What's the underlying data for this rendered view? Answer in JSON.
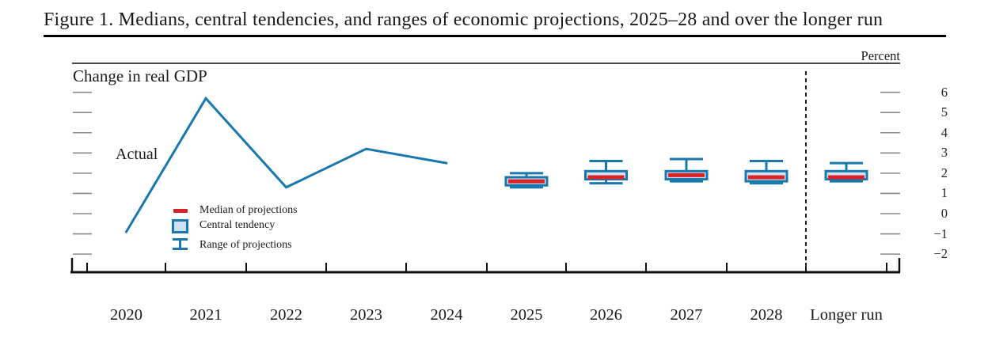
{
  "figure": {
    "title": "Figure 1. Medians, central tendencies, and ranges of economic projections, 2025–28 and over the longer run"
  },
  "chart": {
    "panel_title": "Change in real GDP",
    "unit_label": "Percent",
    "actual_label": "Actual",
    "legend": [
      {
        "marker": "median-dash-icon",
        "label": "Median of projections"
      },
      {
        "marker": "central-tendency-box-icon",
        "label": "Central tendency"
      },
      {
        "marker": "range-whisker-icon",
        "label": "Range of projections"
      }
    ]
  },
  "chart_data": {
    "type": "line+box-whisker",
    "title": "Change in real GDP",
    "unit_label": "Percent",
    "ylim": [
      -2.5,
      6.5
    ],
    "y_ticks": [
      "6",
      "5",
      "4",
      "3",
      "2",
      "1",
      "0",
      "−1",
      "−2"
    ],
    "y_tick_values": [
      6,
      5,
      4,
      3,
      2,
      1,
      0,
      -1,
      -2
    ],
    "x_categories": [
      "2020",
      "2021",
      "2022",
      "2023",
      "2024",
      "2025",
      "2026",
      "2027",
      "2028",
      "Longer run"
    ],
    "actual": {
      "label": "Actual",
      "years": [
        "2020",
        "2021",
        "2022",
        "2023",
        "2024"
      ],
      "values": [
        -0.9,
        5.7,
        1.3,
        3.2,
        2.5
      ]
    },
    "projections": [
      {
        "period": "2025",
        "median": 1.6,
        "central_tendency": [
          1.4,
          1.8
        ],
        "range": [
          1.3,
          2.0
        ]
      },
      {
        "period": "2026",
        "median": 1.8,
        "central_tendency": [
          1.7,
          2.1
        ],
        "range": [
          1.5,
          2.6
        ]
      },
      {
        "period": "2027",
        "median": 1.9,
        "central_tendency": [
          1.7,
          2.1
        ],
        "range": [
          1.6,
          2.7
        ]
      },
      {
        "period": "2028",
        "median": 1.8,
        "central_tendency": [
          1.6,
          2.1
        ],
        "range": [
          1.5,
          2.6
        ]
      },
      {
        "period": "Longer run",
        "median": 1.8,
        "central_tendency": [
          1.7,
          2.1
        ],
        "range": [
          1.6,
          2.5
        ]
      }
    ],
    "longer_run_separator": "dashed",
    "legend_position": "inside-lower-left",
    "grid": false
  },
  "colors": {
    "blue": "#1878ae",
    "light_blue": "#cfe2f3",
    "red": "#da2128",
    "tick_gray": "#8a8a8a",
    "axis_black": "#111111",
    "border_gray": "#4a4a4a"
  }
}
